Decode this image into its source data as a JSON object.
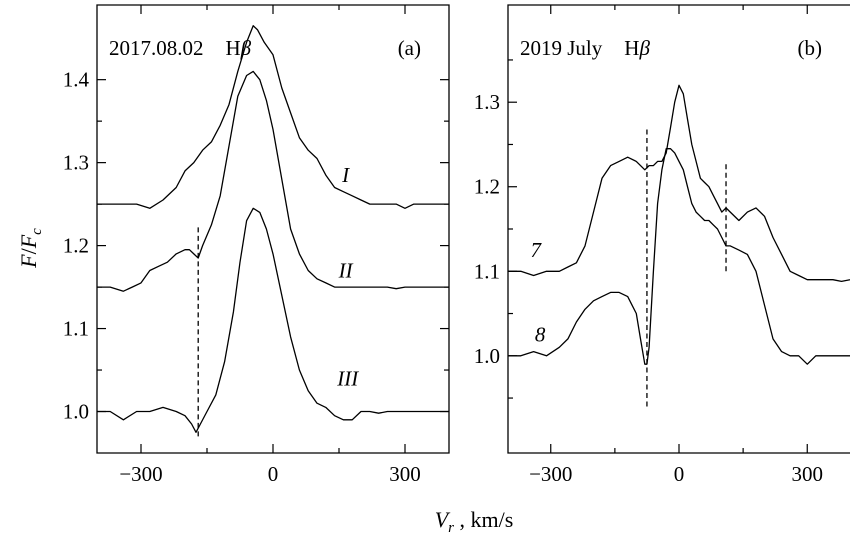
{
  "ylabel": {
    "main": "F",
    "sep": "/",
    "sub_base": "F",
    "sub": "c"
  },
  "xlabel": {
    "base": "V",
    "sub": "r",
    "unit": " , km/s"
  },
  "chart_data": [
    {
      "type": "line",
      "panel": "(a)",
      "title_date": "2017.08.02",
      "title_line": {
        "base": "H",
        "greek": "β"
      },
      "xlim": [
        -400,
        400
      ],
      "ylim": [
        0.95,
        1.49
      ],
      "xticks": [
        -300,
        0,
        300
      ],
      "xtick_labels": [
        "−300",
        "0",
        "300"
      ],
      "yticks": [
        1.0,
        1.1,
        1.2,
        1.3,
        1.4
      ],
      "ytick_labels": [
        "1.0",
        "1.1",
        "1.2",
        "1.3",
        "1.4"
      ],
      "vlines": [
        {
          "x": -170,
          "y_from": 0.97,
          "y_to": 1.225
        }
      ],
      "series": [
        {
          "name": "I",
          "label_at": [
            165,
            1.285
          ],
          "x": [
            -400,
            -370,
            -340,
            -310,
            -280,
            -250,
            -220,
            -200,
            -180,
            -160,
            -140,
            -120,
            -100,
            -80,
            -60,
            -45,
            -35,
            -20,
            0,
            20,
            40,
            60,
            80,
            100,
            120,
            140,
            160,
            180,
            200,
            220,
            240,
            260,
            280,
            300,
            320,
            340,
            360,
            380,
            400
          ],
          "y": [
            1.25,
            1.25,
            1.25,
            1.25,
            1.245,
            1.255,
            1.27,
            1.29,
            1.3,
            1.315,
            1.325,
            1.345,
            1.37,
            1.41,
            1.445,
            1.465,
            1.46,
            1.445,
            1.43,
            1.39,
            1.36,
            1.33,
            1.315,
            1.305,
            1.285,
            1.27,
            1.265,
            1.26,
            1.255,
            1.25,
            1.25,
            1.25,
            1.25,
            1.245,
            1.25,
            1.25,
            1.25,
            1.25,
            1.25
          ]
        },
        {
          "name": "II",
          "label_at": [
            165,
            1.17
          ],
          "x": [
            -400,
            -370,
            -340,
            -320,
            -300,
            -280,
            -260,
            -240,
            -220,
            -200,
            -190,
            -180,
            -170,
            -160,
            -140,
            -120,
            -100,
            -80,
            -60,
            -45,
            -30,
            -15,
            0,
            20,
            40,
            60,
            80,
            100,
            120,
            140,
            160,
            180,
            200,
            220,
            240,
            260,
            280,
            300,
            320,
            340,
            360,
            380,
            400
          ],
          "y": [
            1.15,
            1.15,
            1.145,
            1.15,
            1.155,
            1.17,
            1.175,
            1.18,
            1.19,
            1.195,
            1.195,
            1.19,
            1.185,
            1.2,
            1.225,
            1.26,
            1.32,
            1.38,
            1.405,
            1.41,
            1.4,
            1.375,
            1.34,
            1.28,
            1.22,
            1.19,
            1.17,
            1.16,
            1.155,
            1.15,
            1.15,
            1.15,
            1.15,
            1.15,
            1.15,
            1.15,
            1.148,
            1.15,
            1.15,
            1.15,
            1.15,
            1.15,
            1.15
          ]
        },
        {
          "name": "III",
          "label_at": [
            170,
            1.04
          ],
          "x": [
            -400,
            -370,
            -340,
            -310,
            -280,
            -250,
            -220,
            -200,
            -185,
            -175,
            -165,
            -150,
            -130,
            -110,
            -90,
            -75,
            -60,
            -45,
            -30,
            -15,
            0,
            20,
            40,
            60,
            80,
            100,
            120,
            140,
            160,
            180,
            200,
            220,
            240,
            260,
            280,
            300,
            320,
            340,
            360,
            380,
            400
          ],
          "y": [
            1.0,
            1.0,
            0.99,
            1.0,
            1.0,
            1.005,
            1.0,
            0.995,
            0.985,
            0.975,
            0.985,
            1.0,
            1.02,
            1.06,
            1.12,
            1.18,
            1.23,
            1.245,
            1.24,
            1.22,
            1.19,
            1.14,
            1.09,
            1.05,
            1.025,
            1.01,
            1.005,
            0.995,
            0.99,
            0.99,
            1.0,
            1.0,
            0.998,
            1.0,
            1.0,
            1.0,
            1.0,
            1.0,
            1.0,
            1.0,
            1.0
          ]
        }
      ]
    },
    {
      "type": "line",
      "panel": "(b)",
      "title_date": "2019 July",
      "title_line": {
        "base": "H",
        "greek": "β"
      },
      "xlim": [
        -400,
        400
      ],
      "ylim": [
        0.885,
        1.415
      ],
      "xticks": [
        -300,
        0,
        300
      ],
      "xtick_labels": [
        "−300",
        "0",
        "300"
      ],
      "yticks": [
        1.0,
        1.1,
        1.2,
        1.3
      ],
      "ytick_labels": [
        "1.0",
        "1.1",
        "1.2",
        "1.3"
      ],
      "minor_yticks": [
        0.95,
        1.05,
        1.15,
        1.25,
        1.35
      ],
      "vlines": [
        {
          "x": -75,
          "y_from": 0.94,
          "y_to": 1.27
        },
        {
          "x": 110,
          "y_from": 1.1,
          "y_to": 1.23
        }
      ],
      "series": [
        {
          "name": "7",
          "label_at": [
            -335,
            1.125
          ],
          "x": [
            -400,
            -370,
            -340,
            -310,
            -280,
            -260,
            -240,
            -220,
            -200,
            -180,
            -160,
            -140,
            -120,
            -100,
            -90,
            -80,
            -70,
            -60,
            -50,
            -40,
            -30,
            -20,
            -10,
            0,
            10,
            20,
            30,
            40,
            50,
            60,
            70,
            80,
            90,
            100,
            110,
            120,
            140,
            160,
            180,
            200,
            220,
            240,
            260,
            280,
            300,
            320,
            340,
            360,
            380,
            400
          ],
          "y": [
            1.1,
            1.1,
            1.095,
            1.1,
            1.1,
            1.105,
            1.11,
            1.13,
            1.17,
            1.21,
            1.225,
            1.23,
            1.235,
            1.23,
            1.225,
            1.22,
            1.225,
            1.225,
            1.23,
            1.23,
            1.24,
            1.27,
            1.3,
            1.32,
            1.31,
            1.28,
            1.25,
            1.23,
            1.21,
            1.205,
            1.2,
            1.19,
            1.18,
            1.17,
            1.175,
            1.17,
            1.16,
            1.17,
            1.175,
            1.165,
            1.14,
            1.12,
            1.1,
            1.095,
            1.09,
            1.09,
            1.09,
            1.09,
            1.088,
            1.09
          ]
        },
        {
          "name": "8",
          "label_at": [
            -325,
            1.025
          ],
          "x": [
            -400,
            -370,
            -340,
            -310,
            -280,
            -260,
            -240,
            -220,
            -200,
            -180,
            -160,
            -140,
            -120,
            -110,
            -100,
            -90,
            -80,
            -75,
            -70,
            -60,
            -50,
            -40,
            -30,
            -20,
            -10,
            0,
            10,
            20,
            30,
            40,
            50,
            60,
            70,
            80,
            90,
            100,
            110,
            120,
            140,
            160,
            180,
            200,
            220,
            240,
            260,
            280,
            300,
            320,
            340,
            360,
            380,
            400
          ],
          "y": [
            1.0,
            1.0,
            1.005,
            1.0,
            1.01,
            1.02,
            1.04,
            1.055,
            1.065,
            1.07,
            1.075,
            1.075,
            1.07,
            1.06,
            1.05,
            1.02,
            0.99,
            0.99,
            1.01,
            1.1,
            1.18,
            1.22,
            1.245,
            1.245,
            1.24,
            1.23,
            1.22,
            1.2,
            1.18,
            1.17,
            1.165,
            1.16,
            1.16,
            1.155,
            1.15,
            1.14,
            1.13,
            1.13,
            1.125,
            1.12,
            1.1,
            1.06,
            1.02,
            1.005,
            1.0,
            1.0,
            0.99,
            1.0,
            1.0,
            1.0,
            1.0,
            1.0
          ]
        }
      ]
    }
  ]
}
